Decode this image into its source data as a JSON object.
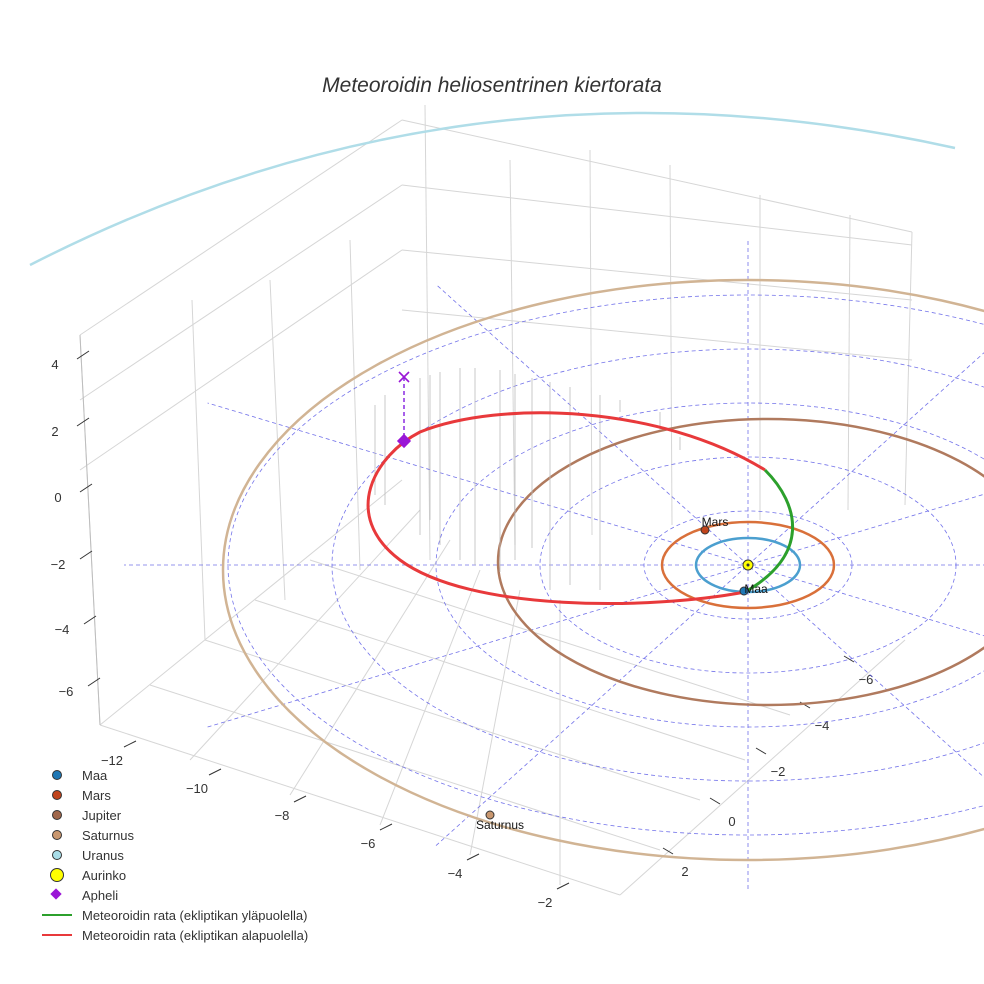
{
  "chart_data": {
    "type": "line3d",
    "title": "Meteoroidin heliosentrinen kiertorata",
    "x_axis_ticks": [
      "−12",
      "−10",
      "−8",
      "−6",
      "−4",
      "−2"
    ],
    "y_axis_ticks": [
      "2",
      "0",
      "−2",
      "−4",
      "−6"
    ],
    "z_axis_ticks": [
      "4",
      "2",
      "0",
      "−2",
      "−4",
      "−6"
    ],
    "grid": true,
    "legend_position": "bottom-left",
    "planets": [
      {
        "name": "Maa",
        "label": "Maa",
        "color": "#1f77b4",
        "orbit_color": "#4b9fcf",
        "orbit_radius_au": 1.0
      },
      {
        "name": "Mars",
        "label": "Mars",
        "color": "#c0441c",
        "orbit_color": "#d9703a",
        "orbit_radius_au": 1.52
      },
      {
        "name": "Jupiter",
        "label": "",
        "color": "#a0674b",
        "orbit_color": "#b07a5e",
        "orbit_radius_au": 5.2
      },
      {
        "name": "Saturnus",
        "label": "Saturnus",
        "color": "#c9976f",
        "orbit_color": "#d1b494",
        "orbit_radius_au": 9.54
      },
      {
        "name": "Uranus",
        "label": "",
        "color": "#a8dde8",
        "orbit_color": "#b0dde8",
        "orbit_radius_au": 19.2
      }
    ],
    "sun": {
      "name": "Aurinko",
      "color": "#ffff00"
    },
    "aphelion": {
      "name": "Apheli",
      "color": "#8a2be2"
    },
    "series": [
      {
        "name": "Meteoroidin rata (ekliptikan yläpuolella)",
        "color": "#2ca02c"
      },
      {
        "name": "Meteoroidin rata (ekliptikan alapuolella)",
        "color": "#e8393b"
      }
    ]
  },
  "legend": [
    {
      "label": "Maa",
      "kind": "dot",
      "color": "#1f77b4"
    },
    {
      "label": "Mars",
      "kind": "dot",
      "color": "#c0441c"
    },
    {
      "label": "Jupiter",
      "kind": "dot",
      "color": "#a0674b"
    },
    {
      "label": "Saturnus",
      "kind": "dot",
      "color": "#c9976f"
    },
    {
      "label": "Uranus",
      "kind": "dot",
      "color": "#a8dde8"
    },
    {
      "label": "Aurinko",
      "kind": "bigdot",
      "color": "#ffff00"
    },
    {
      "label": "Apheli",
      "kind": "diamond",
      "color": "#9a16d6"
    },
    {
      "label": "Meteoroidin rata (ekliptikan yläpuolella)",
      "kind": "line",
      "color": "#2ca02c"
    },
    {
      "label": "Meteoroidin rata (ekliptikan alapuolella)",
      "kind": "line",
      "color": "#e8393b"
    }
  ]
}
